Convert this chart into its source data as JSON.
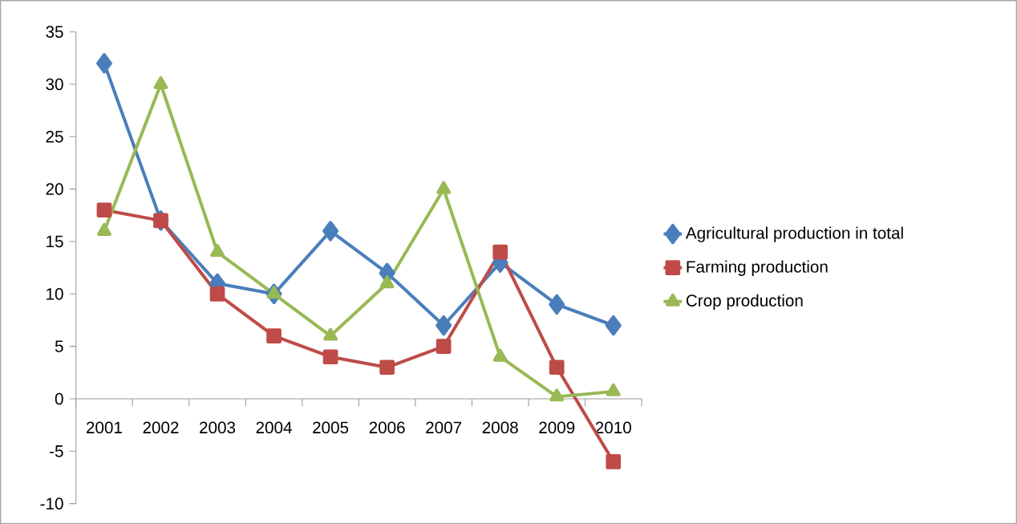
{
  "chart_data": {
    "type": "line",
    "categories": [
      "2001",
      "2002",
      "2003",
      "2004",
      "2005",
      "2006",
      "2007",
      "2008",
      "2009",
      "2010"
    ],
    "series": [
      {
        "name": "Agricultural production in total",
        "color": "#4a7ebb",
        "marker": "diamond",
        "values": [
          32,
          17,
          11,
          10,
          16,
          12,
          7,
          13,
          9,
          7
        ]
      },
      {
        "name": "Farming production",
        "color": "#be4b48",
        "marker": "square",
        "values": [
          18,
          17,
          10,
          6,
          4,
          3,
          5,
          14,
          3,
          -6
        ]
      },
      {
        "name": "Crop production",
        "color": "#98b954",
        "marker": "triangle",
        "values": [
          16,
          30,
          14,
          10,
          6,
          11,
          20,
          4,
          0.2,
          0.7
        ]
      }
    ],
    "ylim": [
      -10,
      35
    ],
    "yticks": [
      -10,
      -5,
      0,
      5,
      10,
      15,
      20,
      25,
      30,
      35
    ],
    "legend": "right",
    "grid": false
  }
}
